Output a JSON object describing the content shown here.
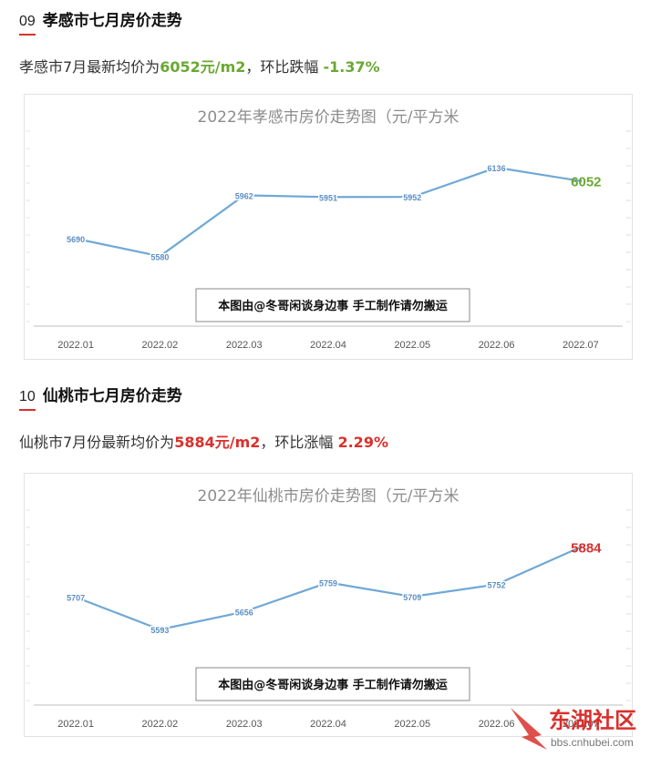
{
  "section1": {
    "number": "09",
    "title": "孝感市七月房价走势",
    "summary_prefix": "孝感市7月最新均价为",
    "summary_price": "6052元/m2",
    "summary_mid": "，环比跌幅 ",
    "summary_change": "-1.37%"
  },
  "section2": {
    "number": "10",
    "title": "仙桃市七月房价走势",
    "summary_prefix": "仙桃市7月份最新均价为",
    "summary_price": "5884元/m2",
    "summary_mid": "，环比涨幅 ",
    "summary_change": "2.29%"
  },
  "colors": {
    "line": "#6fa8d6",
    "green": "#6aa832",
    "red": "#d9302c",
    "title_gray": "#8c8c8c"
  },
  "chart_data": [
    {
      "type": "line",
      "title": "2022年孝感市房价走势图（元/平方米",
      "categories": [
        "2022.01",
        "2022.02",
        "2022.03",
        "2022.04",
        "2022.05",
        "2022.06",
        "2022.07"
      ],
      "values": [
        5690,
        5580,
        5962,
        5951,
        5952,
        6136,
        6052
      ],
      "labels": [
        "5690",
        "5580",
        "5962",
        "5951",
        "5952",
        "6136",
        "6052"
      ],
      "highlight_last_color": "#6aa832",
      "ylim": [
        5450,
        6250
      ],
      "grid": false,
      "annotation": "本图由@冬哥闲谈身边事 手工制作请勿搬运"
    },
    {
      "type": "line",
      "title": "2022年仙桃市房价走势图（元/平方米",
      "categories": [
        "2022.01",
        "2022.02",
        "2022.03",
        "2022.04",
        "2022.05",
        "2022.06",
        "2022.07"
      ],
      "values": [
        5707,
        5593,
        5656,
        5759,
        5709,
        5752,
        5884
      ],
      "labels": [
        "5707",
        "5593",
        "5656",
        "5759",
        "5709",
        "5752",
        "5884"
      ],
      "highlight_last_color": "#d9302c",
      "ylim": [
        5500,
        5950
      ],
      "grid": false,
      "annotation": "本图由@冬哥闲谈身边事 手工制作请勿搬运"
    }
  ],
  "watermark": {
    "brand": "东湖社区",
    "url": "bbs.cnhubei.com"
  }
}
